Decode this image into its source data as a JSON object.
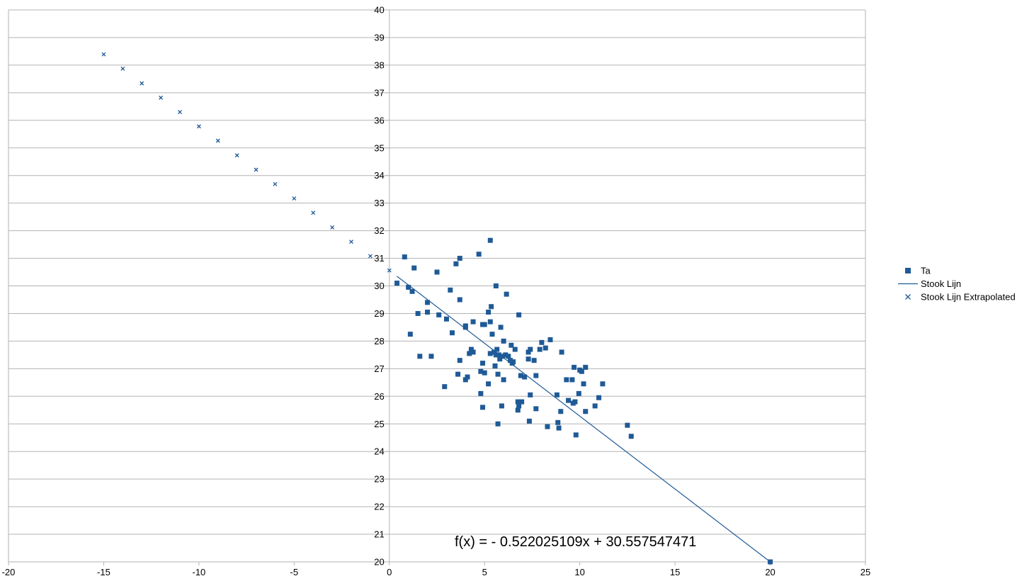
{
  "chart_data": {
    "type": "scatter",
    "xlim": [
      -20,
      25
    ],
    "ylim": [
      20,
      40
    ],
    "x_ticks": [
      "-20",
      "-15",
      "-10",
      "-5",
      "0",
      "5",
      "10",
      "15",
      "20",
      "25"
    ],
    "y_ticks": [
      "20",
      "21",
      "22",
      "23",
      "24",
      "25",
      "26",
      "27",
      "28",
      "29",
      "30",
      "31",
      "32",
      "33",
      "34",
      "35",
      "36",
      "37",
      "38",
      "39",
      "40"
    ],
    "grid": true,
    "legend_position": "right",
    "equation": "f(x) =  - 0.522025109x + 30.557547471",
    "colors": {
      "series": "#1f5a96",
      "grid": "#b3b3b3",
      "axis": "#b3b3b3"
    },
    "series": [
      {
        "name": "Ta",
        "kind": "scatter",
        "marker": "square",
        "points": [
          [
            0.4,
            30.1
          ],
          [
            0.8,
            31.05
          ],
          [
            1.0,
            29.95
          ],
          [
            1.1,
            28.25
          ],
          [
            1.2,
            29.8
          ],
          [
            1.3,
            30.65
          ],
          [
            1.5,
            29.0
          ],
          [
            1.6,
            27.45
          ],
          [
            2.0,
            29.4
          ],
          [
            2.0,
            29.05
          ],
          [
            2.2,
            27.45
          ],
          [
            2.5,
            30.5
          ],
          [
            2.6,
            28.95
          ],
          [
            2.9,
            26.35
          ],
          [
            3.0,
            28.8
          ],
          [
            3.2,
            29.85
          ],
          [
            3.3,
            28.3
          ],
          [
            3.5,
            30.8
          ],
          [
            3.6,
            26.8
          ],
          [
            3.7,
            27.3
          ],
          [
            3.7,
            31.0
          ],
          [
            3.7,
            29.5
          ],
          [
            4.0,
            28.55
          ],
          [
            4.0,
            28.5
          ],
          [
            4.0,
            26.6
          ],
          [
            4.1,
            26.7
          ],
          [
            4.2,
            27.55
          ],
          [
            4.3,
            27.7
          ],
          [
            4.4,
            28.7
          ],
          [
            4.4,
            27.6
          ],
          [
            4.7,
            31.15
          ],
          [
            4.8,
            26.1
          ],
          [
            4.8,
            26.9
          ],
          [
            4.9,
            25.6
          ],
          [
            4.9,
            28.6
          ],
          [
            4.9,
            27.2
          ],
          [
            5.0,
            28.6
          ],
          [
            5.0,
            26.85
          ],
          [
            5.2,
            26.45
          ],
          [
            5.2,
            29.05
          ],
          [
            5.3,
            31.65
          ],
          [
            5.3,
            28.7
          ],
          [
            5.3,
            27.55
          ],
          [
            5.35,
            29.25
          ],
          [
            5.4,
            28.25
          ],
          [
            5.5,
            27.6
          ],
          [
            5.55,
            27.1
          ],
          [
            5.6,
            30.0
          ],
          [
            5.6,
            27.5
          ],
          [
            5.65,
            27.7
          ],
          [
            5.7,
            26.8
          ],
          [
            5.7,
            25.0
          ],
          [
            5.75,
            27.5
          ],
          [
            5.8,
            27.35
          ],
          [
            5.85,
            28.5
          ],
          [
            5.9,
            25.65
          ],
          [
            5.95,
            27.45
          ],
          [
            6.0,
            26.6
          ],
          [
            6.0,
            28.0
          ],
          [
            6.1,
            27.5
          ],
          [
            6.15,
            29.7
          ],
          [
            6.25,
            27.45
          ],
          [
            6.35,
            27.3
          ],
          [
            6.4,
            27.85
          ],
          [
            6.45,
            27.2
          ],
          [
            6.5,
            27.25
          ],
          [
            6.6,
            27.7
          ],
          [
            6.75,
            25.8
          ],
          [
            6.75,
            25.5
          ],
          [
            6.8,
            25.65
          ],
          [
            6.8,
            28.95
          ],
          [
            6.9,
            26.75
          ],
          [
            6.95,
            25.8
          ],
          [
            7.1,
            26.7
          ],
          [
            7.3,
            27.35
          ],
          [
            7.3,
            27.6
          ],
          [
            7.35,
            25.1
          ],
          [
            7.4,
            27.7
          ],
          [
            7.4,
            26.05
          ],
          [
            7.6,
            27.3
          ],
          [
            7.7,
            26.75
          ],
          [
            7.7,
            25.55
          ],
          [
            7.9,
            27.7
          ],
          [
            8.0,
            27.95
          ],
          [
            8.2,
            27.75
          ],
          [
            8.3,
            24.9
          ],
          [
            8.45,
            28.05
          ],
          [
            8.8,
            26.05
          ],
          [
            8.85,
            25.05
          ],
          [
            8.9,
            24.85
          ],
          [
            9.0,
            25.45
          ],
          [
            9.05,
            27.6
          ],
          [
            9.3,
            26.6
          ],
          [
            9.4,
            25.85
          ],
          [
            9.6,
            26.6
          ],
          [
            9.65,
            25.75
          ],
          [
            9.7,
            27.05
          ],
          [
            9.75,
            25.8
          ],
          [
            9.8,
            24.6
          ],
          [
            9.95,
            26.1
          ],
          [
            10.0,
            26.95
          ],
          [
            10.1,
            26.9
          ],
          [
            10.2,
            26.45
          ],
          [
            10.3,
            27.05
          ],
          [
            10.3,
            25.45
          ],
          [
            10.8,
            25.65
          ],
          [
            11.0,
            25.95
          ],
          [
            11.2,
            26.45
          ],
          [
            12.5,
            24.95
          ],
          [
            12.7,
            24.55
          ],
          [
            20.0,
            20.0
          ]
        ]
      },
      {
        "name": "Stook Lijn",
        "kind": "line",
        "points": [
          [
            0.4,
            30.35
          ],
          [
            20.0,
            20.0
          ]
        ]
      },
      {
        "name": "Stook Lijn Extrapolated",
        "kind": "scatter",
        "marker": "x",
        "points": [
          [
            -15,
            38.39
          ],
          [
            -14,
            37.87
          ],
          [
            -13,
            37.34
          ],
          [
            -12,
            36.82
          ],
          [
            -11,
            36.3
          ],
          [
            -10,
            35.78
          ],
          [
            -9,
            35.26
          ],
          [
            -8,
            34.73
          ],
          [
            -7,
            34.21
          ],
          [
            -6,
            33.69
          ],
          [
            -5,
            33.17
          ],
          [
            -4,
            32.65
          ],
          [
            -3,
            32.12
          ],
          [
            -2,
            31.6
          ],
          [
            -1,
            31.08
          ],
          [
            0,
            30.56
          ]
        ]
      }
    ]
  }
}
